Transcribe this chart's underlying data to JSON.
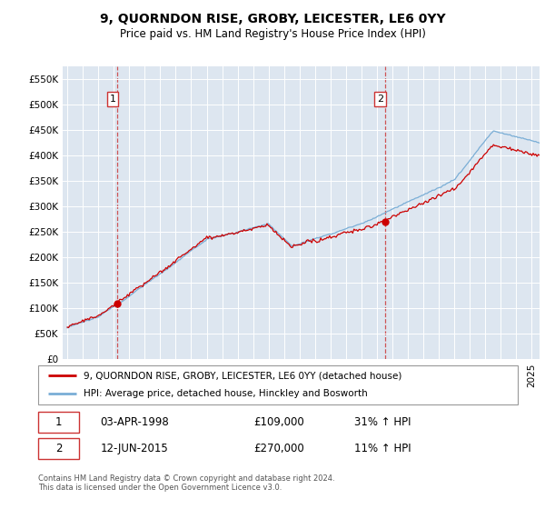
{
  "title": "9, QUORNDON RISE, GROBY, LEICESTER, LE6 0YY",
  "subtitle": "Price paid vs. HM Land Registry's House Price Index (HPI)",
  "legend_label_red": "9, QUORNDON RISE, GROBY, LEICESTER, LE6 0YY (detached house)",
  "legend_label_blue": "HPI: Average price, detached house, Hinckley and Bosworth",
  "transaction1_date": "03-APR-1998",
  "transaction1_price": "£109,000",
  "transaction1_hpi": "31% ↑ HPI",
  "transaction2_date": "12-JUN-2015",
  "transaction2_price": "£270,000",
  "transaction2_hpi": "11% ↑ HPI",
  "footnote": "Contains HM Land Registry data © Crown copyright and database right 2024.\nThis data is licensed under the Open Government Licence v3.0.",
  "ylim": [
    0,
    575000
  ],
  "yticks": [
    0,
    50000,
    100000,
    150000,
    200000,
    250000,
    300000,
    350000,
    400000,
    450000,
    500000,
    550000
  ],
  "background_color": "#dde6f0",
  "red_color": "#cc0000",
  "blue_color": "#7aaed6",
  "vline_color": "#cc4444",
  "start_year": 1995.0,
  "end_year": 2025.5
}
